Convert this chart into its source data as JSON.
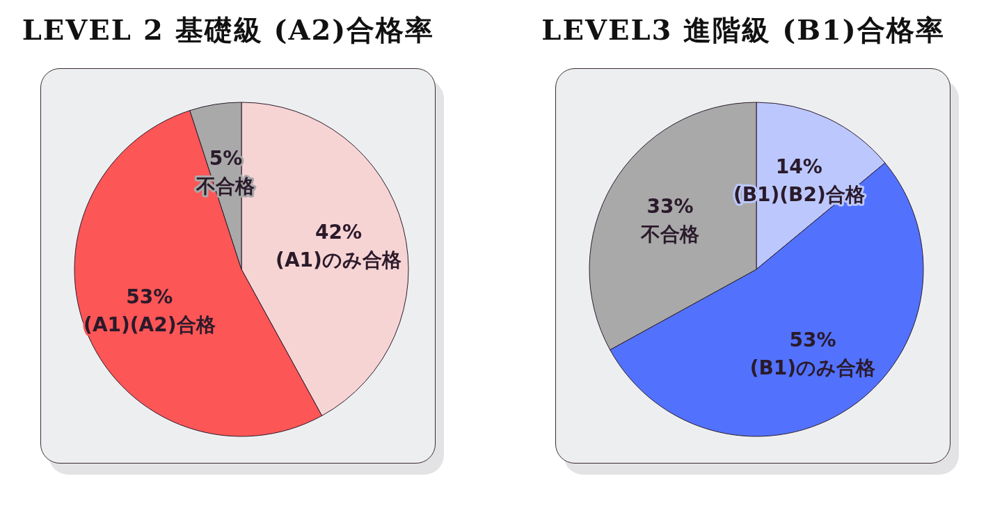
{
  "chart_data": [
    {
      "type": "pie",
      "title": "LEVEL 2 基礎級 (A2)合格率",
      "categories": [
        "(A1)のみ合格",
        "(A1)(A2)合格",
        "不合格"
      ],
      "values": [
        42,
        53,
        5
      ],
      "value_labels": [
        "42%",
        "53%",
        "5%"
      ],
      "colors": [
        "#f7d4d4",
        "#fd5656",
        "#a9a9a9"
      ],
      "legend": false
    },
    {
      "type": "pie",
      "title": "LEVEL3 進階級 (B1)合格率",
      "categories": [
        "(B1)(B2)合格",
        "(B1)のみ合格",
        "不合格"
      ],
      "values": [
        14,
        53,
        33
      ],
      "value_labels": [
        "14%",
        "53%",
        "33%"
      ],
      "colors": [
        "#bcc8fd",
        "#5272fe",
        "#a9a9a9"
      ],
      "legend": false
    }
  ]
}
